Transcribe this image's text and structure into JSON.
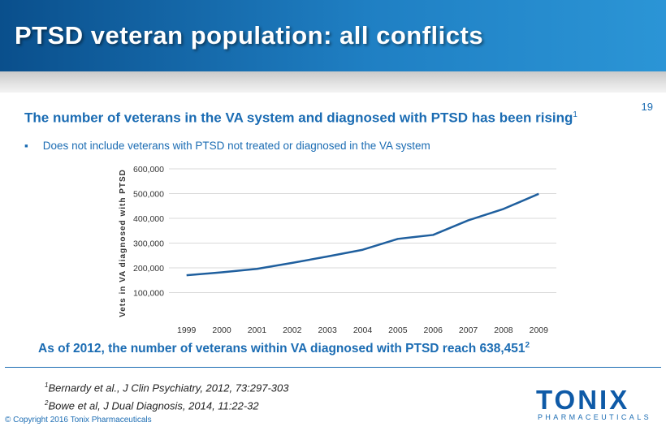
{
  "header": {
    "title": "PTSD veteran population: all conflicts"
  },
  "page_number": "19",
  "subtitle": {
    "text": "The number of veterans in the VA system and diagnosed with PTSD has been rising",
    "superscript": "1"
  },
  "bullet": {
    "marker": "▪",
    "text": "Does not include veterans with PTSD not treated or diagnosed in the VA system"
  },
  "footnote_main": {
    "text": "As of 2012, the number of veterans within VA diagnosed with PTSD reach 638,451",
    "superscript": "2"
  },
  "references": [
    {
      "superscript": "1",
      "text": "Bernardy et al., J Clin Psychiatry, 2012, 73:297-303"
    },
    {
      "superscript": "2",
      "text": "Bowe et al, J Dual Diagnosis, 2014, 11:22-32"
    }
  ],
  "copyright": "© Copyright 2016 Tonix Pharmaceuticals",
  "logo": {
    "word": "TONIX",
    "sub": "PHARMACEUTICALS"
  },
  "colors": {
    "accent": "#1b6cb3",
    "header_start": "#0a4f8c",
    "header_end": "#2b95d6",
    "line": "#1f5f9e",
    "grid": "#d9d9d9"
  },
  "chart_data": {
    "type": "line",
    "title": "",
    "xlabel": "",
    "ylabel": "Vets in VA diagnosed with PTSD",
    "categories": [
      "1999",
      "2000",
      "2001",
      "2002",
      "2003",
      "2004",
      "2005",
      "2006",
      "2007",
      "2008",
      "2009"
    ],
    "series": [
      {
        "values": [
          170000,
          182000,
          196000,
          220000,
          246000,
          273000,
          317000,
          333000,
          392000,
          438000,
          499000
        ]
      }
    ],
    "ylim": [
      0,
      600000
    ],
    "yticks": [
      100000,
      200000,
      300000,
      400000,
      500000,
      600000
    ],
    "ytick_labels": [
      "100,000",
      "200,000",
      "300,000",
      "400,000",
      "500,000",
      "600,000"
    ],
    "grid": true,
    "legend": "none"
  }
}
